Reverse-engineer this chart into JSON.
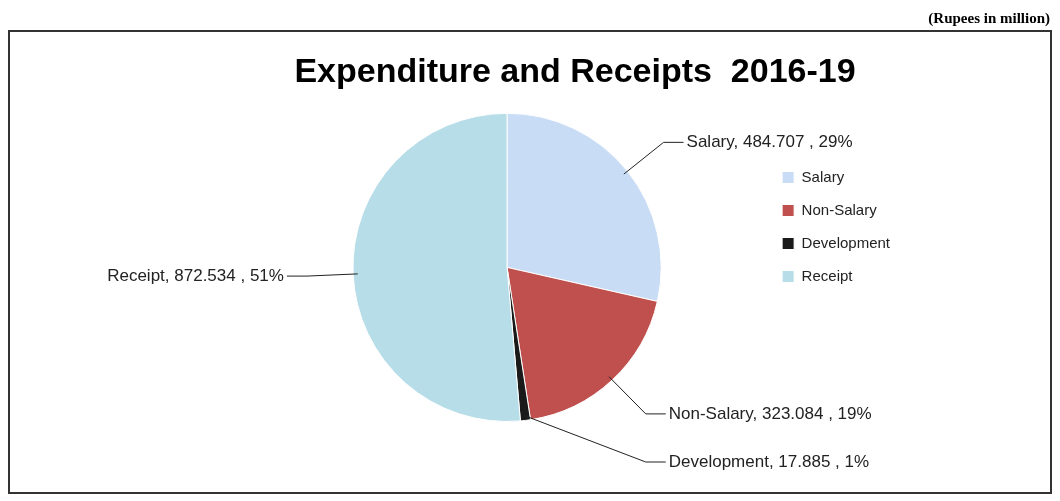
{
  "chart_data": {
    "type": "pie",
    "title": "Expenditure and Receipts  2016-19",
    "annotations": [
      "(Rupees in million)"
    ],
    "categories": [
      "Salary",
      "Non-Salary",
      "Development",
      "Receipt"
    ],
    "values": [
      484.707,
      323.084,
      17.885,
      872.534
    ],
    "colors": [
      "#c9dcf5",
      "#c0504d",
      "#1a1a1a",
      "#b7dde8"
    ],
    "value_labels": [
      "Salary, 484.707 , 29%",
      "Non-Salary, 323.084 , 19%",
      "Development, 17.885 , 1%",
      "Receipt, 872.534 , 51%"
    ],
    "legend": "right"
  }
}
